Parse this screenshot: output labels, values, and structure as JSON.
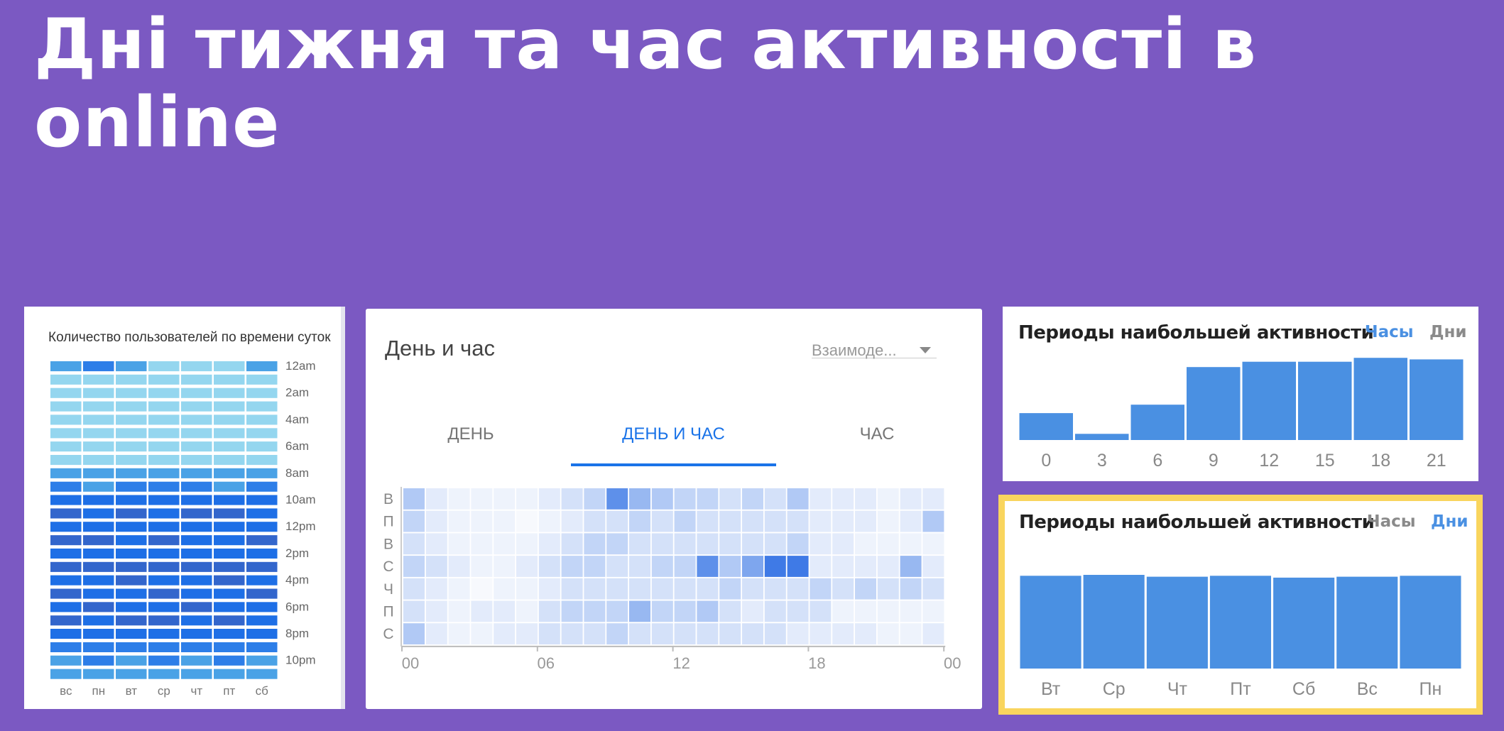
{
  "slide": {
    "title": "Дні тижня та час активності в online"
  },
  "users_chart": {
    "title": "Количество пользователей по времени суток",
    "days": [
      "вс",
      "пн",
      "вт",
      "ср",
      "чт",
      "пт",
      "сб"
    ],
    "hour_labels": [
      "12am",
      "2am",
      "4am",
      "6am",
      "8am",
      "10am",
      "12pm",
      "2pm",
      "4pm",
      "6pm",
      "8pm",
      "10pm"
    ],
    "colors": {
      "1": "#94d6ef",
      "2": "#4aa2e6",
      "3": "#2d7ee8",
      "4": "#1e6fe6",
      "5": "#3366cc"
    },
    "levels": [
      [
        2,
        3,
        2,
        1,
        1,
        1,
        2
      ],
      [
        1,
        1,
        1,
        1,
        1,
        1,
        1
      ],
      [
        1,
        1,
        1,
        1,
        1,
        1,
        1
      ],
      [
        1,
        1,
        1,
        1,
        1,
        1,
        1
      ],
      [
        1,
        1,
        1,
        1,
        1,
        1,
        1
      ],
      [
        1,
        1,
        1,
        1,
        1,
        1,
        1
      ],
      [
        1,
        1,
        1,
        1,
        1,
        1,
        1
      ],
      [
        1,
        1,
        1,
        1,
        1,
        1,
        1
      ],
      [
        2,
        2,
        2,
        2,
        2,
        2,
        2
      ],
      [
        3,
        2,
        3,
        3,
        3,
        2,
        3
      ],
      [
        4,
        4,
        4,
        4,
        4,
        4,
        4
      ],
      [
        5,
        4,
        5,
        4,
        5,
        5,
        4
      ],
      [
        4,
        4,
        4,
        4,
        4,
        4,
        4
      ],
      [
        5,
        5,
        4,
        5,
        4,
        4,
        5
      ],
      [
        4,
        4,
        4,
        4,
        4,
        4,
        4
      ],
      [
        5,
        5,
        5,
        5,
        5,
        5,
        5
      ],
      [
        4,
        4,
        5,
        4,
        4,
        5,
        4
      ],
      [
        5,
        4,
        4,
        5,
        4,
        4,
        5
      ],
      [
        4,
        5,
        4,
        4,
        5,
        4,
        4
      ],
      [
        5,
        4,
        5,
        5,
        4,
        5,
        4
      ],
      [
        4,
        4,
        4,
        4,
        4,
        4,
        4
      ],
      [
        3,
        3,
        3,
        3,
        3,
        3,
        3
      ],
      [
        2,
        3,
        2,
        3,
        2,
        3,
        2
      ],
      [
        2,
        2,
        2,
        2,
        2,
        2,
        2
      ]
    ]
  },
  "day_hour_card": {
    "title": "День и час",
    "dropdown": "Взаимоде...",
    "tabs": [
      "ДЕНЬ",
      "ДЕНЬ И ЧАС",
      "ЧАС"
    ],
    "active_tab": 1,
    "heatmap": {
      "type": "heatmap",
      "rows": [
        "В",
        "П",
        "В",
        "С",
        "Ч",
        "П",
        "С"
      ],
      "x_ticks": [
        "00",
        "06",
        "12",
        "18",
        "00"
      ],
      "values": [
        [
          5,
          2,
          1,
          1,
          1,
          1,
          2,
          3,
          4,
          8,
          6,
          5,
          4,
          4,
          3,
          4,
          3,
          5,
          2,
          2,
          2,
          1,
          2,
          2
        ],
        [
          4,
          2,
          1,
          1,
          1,
          0,
          1,
          2,
          3,
          3,
          4,
          3,
          4,
          3,
          3,
          3,
          3,
          3,
          2,
          2,
          2,
          1,
          2,
          5
        ],
        [
          3,
          2,
          1,
          1,
          1,
          1,
          2,
          3,
          4,
          4,
          3,
          3,
          3,
          3,
          3,
          3,
          3,
          4,
          2,
          2,
          1,
          1,
          1,
          1
        ],
        [
          4,
          3,
          2,
          1,
          1,
          2,
          3,
          4,
          4,
          3,
          3,
          4,
          4,
          8,
          5,
          7,
          9,
          9,
          2,
          2,
          2,
          2,
          6,
          2
        ],
        [
          3,
          2,
          1,
          0,
          1,
          1,
          2,
          3,
          3,
          3,
          3,
          3,
          3,
          3,
          4,
          3,
          3,
          3,
          4,
          3,
          4,
          3,
          4,
          3
        ],
        [
          3,
          2,
          1,
          2,
          2,
          1,
          3,
          4,
          4,
          4,
          6,
          4,
          4,
          5,
          3,
          2,
          3,
          3,
          3,
          1,
          1,
          1,
          1,
          1
        ],
        [
          5,
          2,
          1,
          1,
          2,
          2,
          3,
          3,
          3,
          4,
          3,
          3,
          3,
          3,
          3,
          3,
          3,
          2,
          2,
          2,
          2,
          1,
          1,
          2
        ]
      ],
      "colors": [
        "#f7f9fd",
        "#eef3fc",
        "#e3ebfb",
        "#d4e1f9",
        "#c2d5f7",
        "#b1c9f5",
        "#98b8f1",
        "#7ea6ee",
        "#5e90ea",
        "#3f7ae6"
      ]
    }
  },
  "activity_hours": {
    "title": "Периоды наибольшей активности",
    "tab_hours": "Часы",
    "tab_days": "Дни",
    "active": "hours",
    "chart_data": {
      "type": "bar",
      "categories": [
        "0",
        "3",
        "6",
        "9",
        "12",
        "15",
        "18",
        "21"
      ],
      "values": [
        35,
        8,
        46,
        95,
        102,
        102,
        107,
        105
      ],
      "ylim": [
        0,
        110
      ]
    },
    "bar_color": "#4a90e2"
  },
  "activity_days": {
    "title": "Периоды наибольшей активности",
    "tab_hours": "Часы",
    "tab_days": "Дни",
    "active": "days",
    "chart_data": {
      "type": "bar",
      "categories": [
        "Вт",
        "Ср",
        "Чт",
        "Пт",
        "Сб",
        "Вс",
        "Пн"
      ],
      "values": [
        100,
        101,
        99,
        100,
        98,
        99,
        100
      ],
      "ylim": [
        0,
        101
      ]
    },
    "bar_color": "#4a90e2"
  }
}
